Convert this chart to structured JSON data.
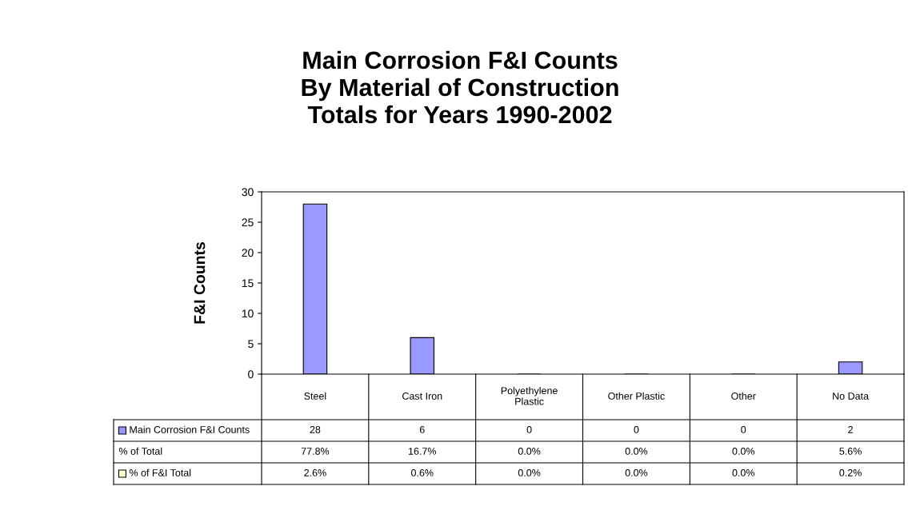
{
  "chart_data": {
    "type": "bar",
    "title": "Main Corrosion F&I Counts\nBy Material of Construction\nTotals for Years 1990-2002",
    "ylabel": "F&I Counts",
    "categories": [
      "Steel",
      "Cast Iron",
      "Polyethylene Plastic",
      "Other Plastic",
      "Other",
      "No Data"
    ],
    "series": [
      {
        "name": "Main Corrosion F&I Counts",
        "color": "#9999ff",
        "values": [
          28,
          6,
          0,
          0,
          0,
          2
        ]
      },
      {
        "color": "#ffffcc",
        "values": [
          null,
          null,
          null,
          null,
          null,
          null
        ]
      }
    ],
    "annotations": [
      "% of Total",
      "77.8%",
      "16.7%",
      "0.0%",
      "0.0%",
      "0.0%",
      "5.6%",
      "% of F&I Total",
      "2.6%",
      "0.6%",
      "0.0%",
      "0.0%",
      "0.0%",
      "0.2%"
    ],
    "ylim": [
      0,
      30
    ],
    "yticks": [
      0,
      5,
      10,
      15,
      20,
      25,
      30
    ],
    "grid": false,
    "data_labels": true
  }
}
